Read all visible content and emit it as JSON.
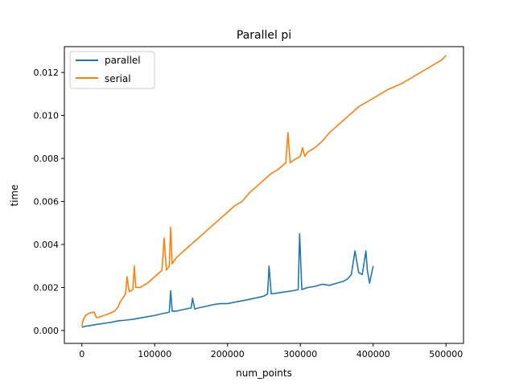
{
  "chart_data": {
    "type": "line",
    "title": "Parallel pi",
    "xlabel": "num_points",
    "ylabel": "time",
    "xlim": [
      -24000,
      524000
    ],
    "ylim": [
      -0.0006,
      0.0132
    ],
    "x_ticks": [
      0,
      100000,
      200000,
      300000,
      400000,
      500000
    ],
    "x_tick_labels": [
      "0",
      "100000",
      "200000",
      "300000",
      "400000",
      "500000"
    ],
    "y_ticks": [
      0.0,
      0.002,
      0.004,
      0.006,
      0.008,
      0.01,
      0.012
    ],
    "y_tick_labels": [
      "0.000",
      "0.002",
      "0.004",
      "0.006",
      "0.008",
      "0.010",
      "0.012"
    ],
    "grid": false,
    "legend_position": "top-left",
    "series": [
      {
        "name": "parallel",
        "color": "#1f77b4",
        "x": [
          0,
          5000,
          10000,
          20000,
          30000,
          40000,
          50000,
          60000,
          70000,
          80000,
          90000,
          100000,
          110000,
          120000,
          122000,
          124000,
          130000,
          140000,
          150000,
          152000,
          155000,
          160000,
          170000,
          180000,
          190000,
          200000,
          210000,
          220000,
          230000,
          240000,
          250000,
          255000,
          257000,
          260000,
          270000,
          280000,
          290000,
          297000,
          299000,
          302000,
          310000,
          320000,
          330000,
          340000,
          350000,
          360000,
          365000,
          370000,
          375000,
          380000,
          385000,
          390000,
          392000,
          395000,
          400000
        ],
        "y": [
          0.00015,
          0.0002,
          0.00022,
          0.00028,
          0.00033,
          0.00038,
          0.00045,
          0.00048,
          0.00052,
          0.00058,
          0.00064,
          0.0007,
          0.00078,
          0.00085,
          0.00185,
          0.0009,
          0.0009,
          0.00098,
          0.00105,
          0.0015,
          0.001,
          0.00105,
          0.00112,
          0.0012,
          0.00125,
          0.00125,
          0.00132,
          0.00138,
          0.00145,
          0.00152,
          0.0016,
          0.0017,
          0.003,
          0.0017,
          0.00175,
          0.0018,
          0.00185,
          0.0019,
          0.0045,
          0.0019,
          0.002,
          0.00205,
          0.00215,
          0.0021,
          0.0022,
          0.0023,
          0.0024,
          0.0026,
          0.0037,
          0.0027,
          0.0026,
          0.0037,
          0.0028,
          0.0022,
          0.003
        ]
      },
      {
        "name": "serial",
        "color": "#ff7f0e",
        "x": [
          0,
          2000,
          5000,
          10000,
          15000,
          17000,
          20000,
          25000,
          30000,
          35000,
          40000,
          45000,
          50000,
          52000,
          54000,
          60000,
          62000,
          65000,
          70000,
          72000,
          74000,
          80000,
          90000,
          100000,
          110000,
          113000,
          116000,
          120000,
          122000,
          124000,
          130000,
          140000,
          150000,
          160000,
          170000,
          180000,
          190000,
          200000,
          210000,
          220000,
          230000,
          240000,
          250000,
          260000,
          270000,
          280000,
          283000,
          286000,
          290000,
          300000,
          303000,
          306000,
          310000,
          320000,
          330000,
          340000,
          350000,
          360000,
          370000,
          380000,
          400000,
          420000,
          440000,
          460000,
          480000,
          490000,
          495000,
          500000
        ],
        "y": [
          0.0002,
          0.0005,
          0.0007,
          0.0008,
          0.00085,
          0.00085,
          0.0006,
          0.00063,
          0.0007,
          0.00075,
          0.00082,
          0.0009,
          0.0011,
          0.0013,
          0.0014,
          0.0017,
          0.0025,
          0.0018,
          0.0019,
          0.003,
          0.002,
          0.002,
          0.0022,
          0.0025,
          0.0028,
          0.0043,
          0.0028,
          0.003,
          0.0048,
          0.0031,
          0.0034,
          0.0037,
          0.004,
          0.0043,
          0.0046,
          0.0049,
          0.0052,
          0.0055,
          0.0058,
          0.006,
          0.0064,
          0.0067,
          0.007,
          0.0073,
          0.0075,
          0.0078,
          0.0092,
          0.0078,
          0.0079,
          0.0081,
          0.0085,
          0.0081,
          0.0083,
          0.0085,
          0.0088,
          0.0092,
          0.0095,
          0.0098,
          0.0101,
          0.0104,
          0.0108,
          0.0112,
          0.0115,
          0.0119,
          0.0123,
          0.0125,
          0.0126,
          0.0128
        ]
      }
    ]
  }
}
